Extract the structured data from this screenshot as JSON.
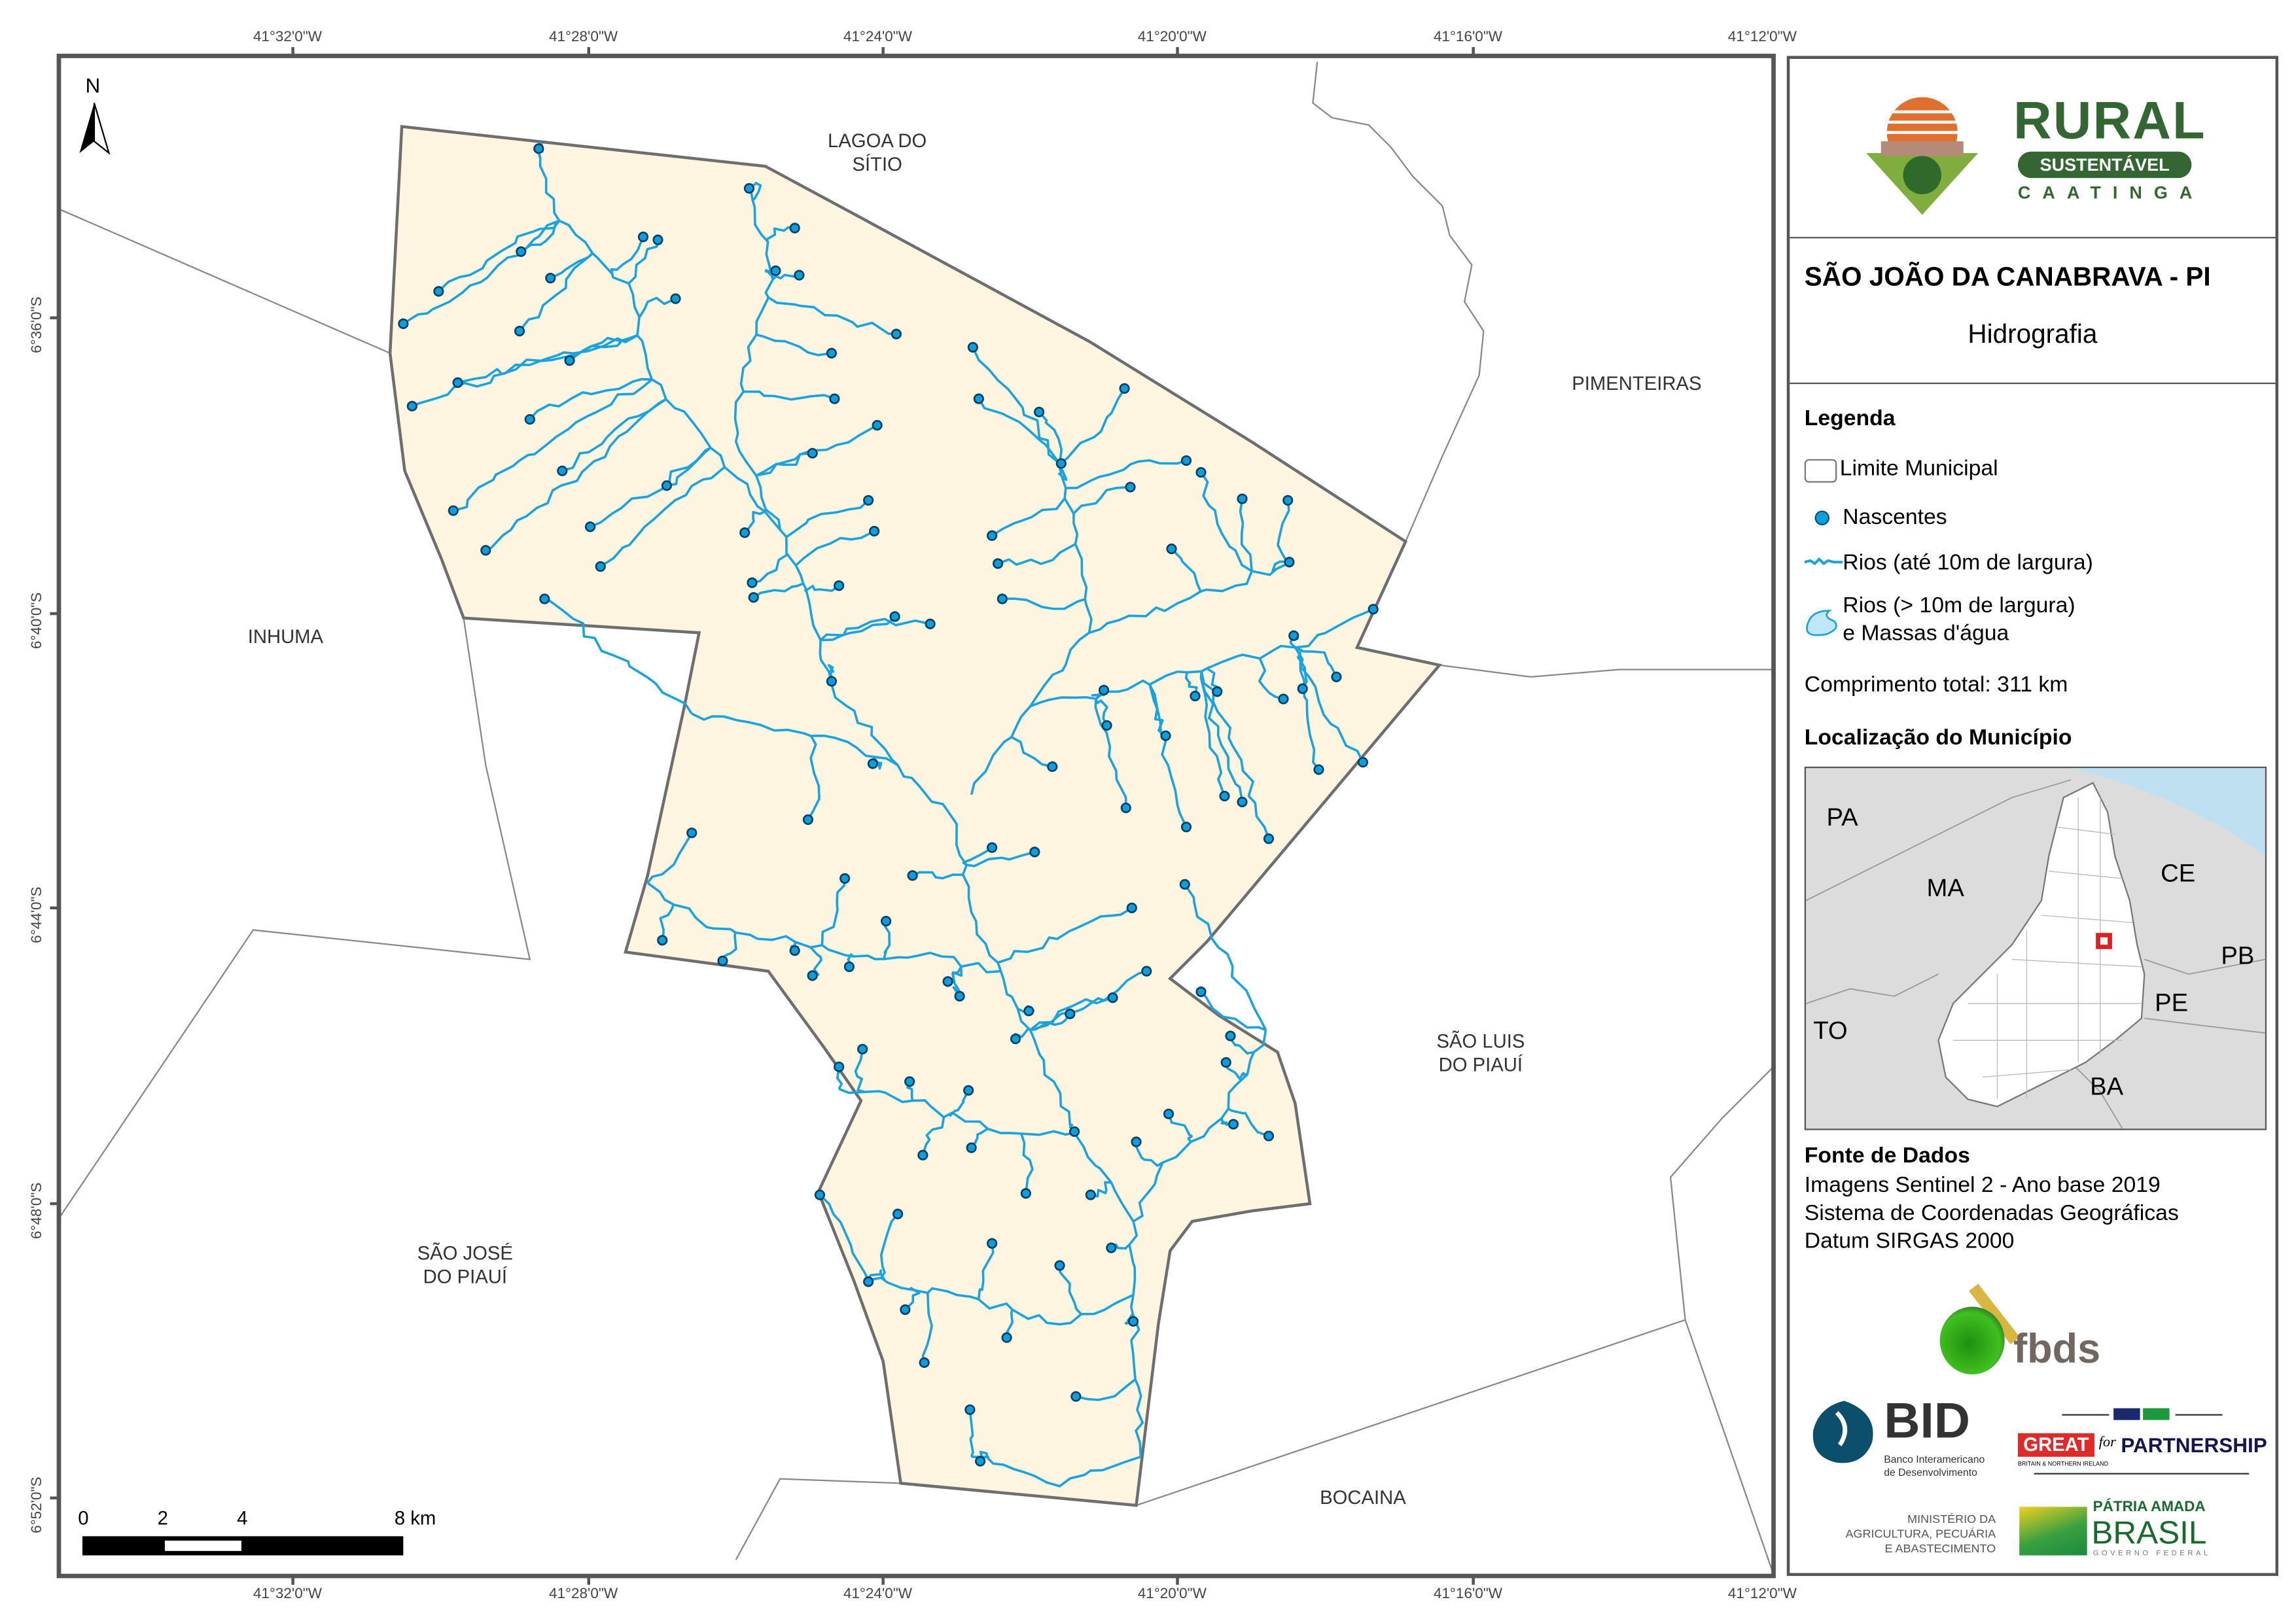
{
  "map": {
    "north_arrow": "N",
    "coords_top": [
      "41°32'0\"W",
      "41°28'0\"W",
      "41°24'0\"W",
      "41°20'0\"W",
      "41°16'0\"W",
      "41°12'0\"W"
    ],
    "coords_bottom": [
      "41°32'0\"W",
      "41°28'0\"W",
      "41°24'0\"W",
      "41°20'0\"W",
      "41°16'0\"W",
      "41°12'0\"W"
    ],
    "coords_left": [
      "6°36'0\"S",
      "6°40'0\"S",
      "6°44'0\"S",
      "6°48'0\"S",
      "6°52'0\"S"
    ],
    "neighbors": {
      "lagoa": "LAGOA DO\nSÍTIO",
      "pimenteiras": "PIMENTEIRAS",
      "inhuma": "INHUMA",
      "sao_luis": "SÃO LUIS\nDO PIAUÍ",
      "sao_jose": "SÃO JOSÉ\nDO PIAUÍ",
      "bocaina": "BOCAINA"
    },
    "scale": {
      "l0": "0",
      "l2": "2",
      "l4": "4",
      "l8": "8 km"
    },
    "colors": {
      "municipality_fill": "#fdf5e0",
      "river": "#1aa3dc",
      "spring": "#0a8fc9",
      "boundary": "#777777"
    }
  },
  "panel": {
    "logo": {
      "rural": "RURAL",
      "sustentavel": "SUSTENTÁVEL",
      "caatinga": "CAATINGA"
    },
    "title": "SÃO JOÃO DA CANABRAVA - PI",
    "subtitle": "Hidrografia",
    "legend": {
      "heading": "Legenda",
      "limite": "Limite Municipal",
      "nascentes": "Nascentes",
      "rios_small": "Rios (até 10m de largura)",
      "rios_big_1": "Rios (> 10m de largura)",
      "rios_big_2": "e Massas d'água",
      "total": "Comprimento total:  311 km"
    },
    "location": {
      "heading": "Localização do Município",
      "states": {
        "PA": "PA",
        "MA": "MA",
        "CE": "CE",
        "PB": "PB",
        "PE": "PE",
        "TO": "TO",
        "BA": "BA"
      }
    },
    "sources": {
      "heading": "Fonte de Dados",
      "l1": "Imagens Sentinel 2 - Ano base 2019",
      "l2": "Sistema de Coordenadas Geográficas",
      "l3": "Datum SIRGAS 2000"
    },
    "logos": {
      "fbds": "fbds",
      "bid": "BID",
      "bid_sub1": "Banco Interamericano",
      "bid_sub2": "de Desenvolvimento",
      "great": "GREAT",
      "for": "for",
      "partnership": "PARTNERSHIP",
      "great_sub": "BRITAIN & NORTHERN IRELAND",
      "min1": "MINISTÉRIO DA",
      "min2": "AGRICULTURA, PECUÁRIA",
      "min3": "E ABASTECIMENTO",
      "patria": "PÁTRIA AMADA",
      "brasil": "BRASIL",
      "gov": "GOVERNO FEDERAL"
    }
  }
}
